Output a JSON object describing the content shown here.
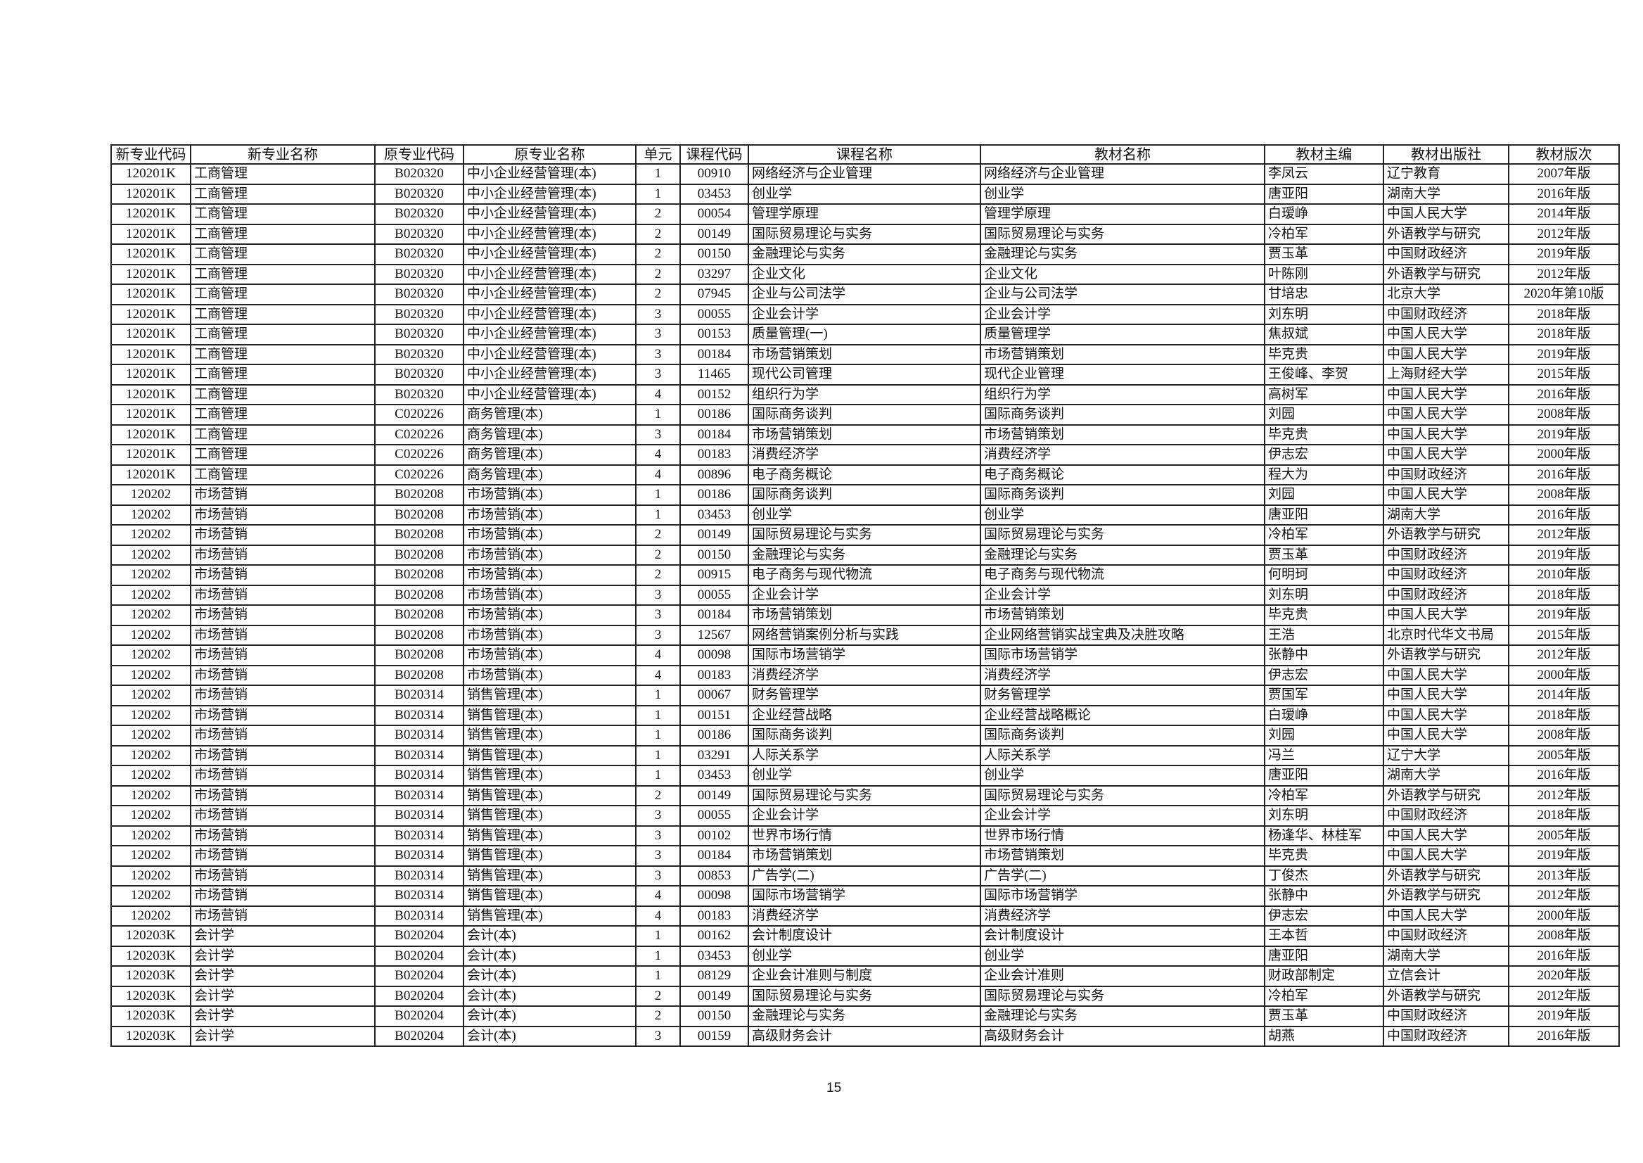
{
  "table": {
    "headers": [
      "新专业代码",
      "新专业名称",
      "原专业代码",
      "原专业名称",
      "单元",
      "课程代码",
      "课程名称",
      "教材名称",
      "教材主编",
      "教材出版社",
      "教材版次"
    ],
    "rows": [
      [
        "120201K",
        "工商管理",
        "B020320",
        "中小企业经营管理(本)",
        "1",
        "00910",
        "网络经济与企业管理",
        "网络经济与企业管理",
        "李凤云",
        "辽宁教育",
        "2007年版"
      ],
      [
        "120201K",
        "工商管理",
        "B020320",
        "中小企业经营管理(本)",
        "1",
        "03453",
        "创业学",
        "创业学",
        "唐亚阳",
        "湖南大学",
        "2016年版"
      ],
      [
        "120201K",
        "工商管理",
        "B020320",
        "中小企业经营管理(本)",
        "2",
        "00054",
        "管理学原理",
        "管理学原理",
        "白瑷峥",
        "中国人民大学",
        "2014年版"
      ],
      [
        "120201K",
        "工商管理",
        "B020320",
        "中小企业经营管理(本)",
        "2",
        "00149",
        "国际贸易理论与实务",
        "国际贸易理论与实务",
        "冷柏军",
        "外语教学与研究",
        "2012年版"
      ],
      [
        "120201K",
        "工商管理",
        "B020320",
        "中小企业经营管理(本)",
        "2",
        "00150",
        "金融理论与实务",
        "金融理论与实务",
        "贾玉革",
        "中国财政经济",
        "2019年版"
      ],
      [
        "120201K",
        "工商管理",
        "B020320",
        "中小企业经营管理(本)",
        "2",
        "03297",
        "企业文化",
        "企业文化",
        "叶陈刚",
        "外语教学与研究",
        "2012年版"
      ],
      [
        "120201K",
        "工商管理",
        "B020320",
        "中小企业经营管理(本)",
        "2",
        "07945",
        "企业与公司法学",
        "企业与公司法学",
        "甘培忠",
        "北京大学",
        "2020年第10版"
      ],
      [
        "120201K",
        "工商管理",
        "B020320",
        "中小企业经营管理(本)",
        "3",
        "00055",
        "企业会计学",
        "企业会计学",
        "刘东明",
        "中国财政经济",
        "2018年版"
      ],
      [
        "120201K",
        "工商管理",
        "B020320",
        "中小企业经营管理(本)",
        "3",
        "00153",
        "质量管理(一)",
        "质量管理学",
        "焦叔斌",
        "中国人民大学",
        "2018年版"
      ],
      [
        "120201K",
        "工商管理",
        "B020320",
        "中小企业经营管理(本)",
        "3",
        "00184",
        "市场营销策划",
        "市场营销策划",
        "毕克贵",
        "中国人民大学",
        "2019年版"
      ],
      [
        "120201K",
        "工商管理",
        "B020320",
        "中小企业经营管理(本)",
        "3",
        "11465",
        "现代公司管理",
        "现代企业管理",
        "王俊峰、李贺",
        "上海财经大学",
        "2015年版"
      ],
      [
        "120201K",
        "工商管理",
        "B020320",
        "中小企业经营管理(本)",
        "4",
        "00152",
        "组织行为学",
        "组织行为学",
        "高树军",
        "中国人民大学",
        "2016年版"
      ],
      [
        "120201K",
        "工商管理",
        "C020226",
        "商务管理(本)",
        "1",
        "00186",
        "国际商务谈判",
        "国际商务谈判",
        "刘园",
        "中国人民大学",
        "2008年版"
      ],
      [
        "120201K",
        "工商管理",
        "C020226",
        "商务管理(本)",
        "3",
        "00184",
        "市场营销策划",
        "市场营销策划",
        "毕克贵",
        "中国人民大学",
        "2019年版"
      ],
      [
        "120201K",
        "工商管理",
        "C020226",
        "商务管理(本)",
        "4",
        "00183",
        "消费经济学",
        "消费经济学",
        "伊志宏",
        "中国人民大学",
        "2000年版"
      ],
      [
        "120201K",
        "工商管理",
        "C020226",
        "商务管理(本)",
        "4",
        "00896",
        "电子商务概论",
        "电子商务概论",
        "程大为",
        "中国财政经济",
        "2016年版"
      ],
      [
        "120202",
        "市场营销",
        "B020208",
        "市场营销(本)",
        "1",
        "00186",
        "国际商务谈判",
        "国际商务谈判",
        "刘园",
        "中国人民大学",
        "2008年版"
      ],
      [
        "120202",
        "市场营销",
        "B020208",
        "市场营销(本)",
        "1",
        "03453",
        "创业学",
        "创业学",
        "唐亚阳",
        "湖南大学",
        "2016年版"
      ],
      [
        "120202",
        "市场营销",
        "B020208",
        "市场营销(本)",
        "2",
        "00149",
        "国际贸易理论与实务",
        "国际贸易理论与实务",
        "冷柏军",
        "外语教学与研究",
        "2012年版"
      ],
      [
        "120202",
        "市场营销",
        "B020208",
        "市场营销(本)",
        "2",
        "00150",
        "金融理论与实务",
        "金融理论与实务",
        "贾玉革",
        "中国财政经济",
        "2019年版"
      ],
      [
        "120202",
        "市场营销",
        "B020208",
        "市场营销(本)",
        "2",
        "00915",
        "电子商务与现代物流",
        "电子商务与现代物流",
        "何明珂",
        "中国财政经济",
        "2010年版"
      ],
      [
        "120202",
        "市场营销",
        "B020208",
        "市场营销(本)",
        "3",
        "00055",
        "企业会计学",
        "企业会计学",
        "刘东明",
        "中国财政经济",
        "2018年版"
      ],
      [
        "120202",
        "市场营销",
        "B020208",
        "市场营销(本)",
        "3",
        "00184",
        "市场营销策划",
        "市场营销策划",
        "毕克贵",
        "中国人民大学",
        "2019年版"
      ],
      [
        "120202",
        "市场营销",
        "B020208",
        "市场营销(本)",
        "3",
        "12567",
        "网络营销案例分析与实践",
        "企业网络营销实战宝典及决胜攻略",
        "王浩",
        "北京时代华文书局",
        "2015年版"
      ],
      [
        "120202",
        "市场营销",
        "B020208",
        "市场营销(本)",
        "4",
        "00098",
        "国际市场营销学",
        "国际市场营销学",
        "张静中",
        "外语教学与研究",
        "2012年版"
      ],
      [
        "120202",
        "市场营销",
        "B020208",
        "市场营销(本)",
        "4",
        "00183",
        "消费经济学",
        "消费经济学",
        "伊志宏",
        "中国人民大学",
        "2000年版"
      ],
      [
        "120202",
        "市场营销",
        "B020314",
        "销售管理(本)",
        "1",
        "00067",
        "财务管理学",
        "财务管理学",
        "贾国军",
        "中国人民大学",
        "2014年版"
      ],
      [
        "120202",
        "市场营销",
        "B020314",
        "销售管理(本)",
        "1",
        "00151",
        "企业经营战略",
        "企业经营战略概论",
        "白瑷峥",
        "中国人民大学",
        "2018年版"
      ],
      [
        "120202",
        "市场营销",
        "B020314",
        "销售管理(本)",
        "1",
        "00186",
        "国际商务谈判",
        "国际商务谈判",
        "刘园",
        "中国人民大学",
        "2008年版"
      ],
      [
        "120202",
        "市场营销",
        "B020314",
        "销售管理(本)",
        "1",
        "03291",
        "人际关系学",
        "人际关系学",
        "冯兰",
        "辽宁大学",
        "2005年版"
      ],
      [
        "120202",
        "市场营销",
        "B020314",
        "销售管理(本)",
        "1",
        "03453",
        "创业学",
        "创业学",
        "唐亚阳",
        "湖南大学",
        "2016年版"
      ],
      [
        "120202",
        "市场营销",
        "B020314",
        "销售管理(本)",
        "2",
        "00149",
        "国际贸易理论与实务",
        "国际贸易理论与实务",
        "冷柏军",
        "外语教学与研究",
        "2012年版"
      ],
      [
        "120202",
        "市场营销",
        "B020314",
        "销售管理(本)",
        "3",
        "00055",
        "企业会计学",
        "企业会计学",
        "刘东明",
        "中国财政经济",
        "2018年版"
      ],
      [
        "120202",
        "市场营销",
        "B020314",
        "销售管理(本)",
        "3",
        "00102",
        "世界市场行情",
        "世界市场行情",
        "杨逢华、林桂军",
        "中国人民大学",
        "2005年版"
      ],
      [
        "120202",
        "市场营销",
        "B020314",
        "销售管理(本)",
        "3",
        "00184",
        "市场营销策划",
        "市场营销策划",
        "毕克贵",
        "中国人民大学",
        "2019年版"
      ],
      [
        "120202",
        "市场营销",
        "B020314",
        "销售管理(本)",
        "3",
        "00853",
        "广告学(二)",
        "广告学(二)",
        "丁俊杰",
        "外语教学与研究",
        "2013年版"
      ],
      [
        "120202",
        "市场营销",
        "B020314",
        "销售管理(本)",
        "4",
        "00098",
        "国际市场营销学",
        "国际市场营销学",
        "张静中",
        "外语教学与研究",
        "2012年版"
      ],
      [
        "120202",
        "市场营销",
        "B020314",
        "销售管理(本)",
        "4",
        "00183",
        "消费经济学",
        "消费经济学",
        "伊志宏",
        "中国人民大学",
        "2000年版"
      ],
      [
        "120203K",
        "会计学",
        "B020204",
        "会计(本)",
        "1",
        "00162",
        "会计制度设计",
        "会计制度设计",
        "王本哲",
        "中国财政经济",
        "2008年版"
      ],
      [
        "120203K",
        "会计学",
        "B020204",
        "会计(本)",
        "1",
        "03453",
        "创业学",
        "创业学",
        "唐亚阳",
        "湖南大学",
        "2016年版"
      ],
      [
        "120203K",
        "会计学",
        "B020204",
        "会计(本)",
        "1",
        "08129",
        "企业会计准则与制度",
        "企业会计准则",
        "财政部制定",
        "立信会计",
        "2020年版"
      ],
      [
        "120203K",
        "会计学",
        "B020204",
        "会计(本)",
        "2",
        "00149",
        "国际贸易理论与实务",
        "国际贸易理论与实务",
        "冷柏军",
        "外语教学与研究",
        "2012年版"
      ],
      [
        "120203K",
        "会计学",
        "B020204",
        "会计(本)",
        "2",
        "00150",
        "金融理论与实务",
        "金融理论与实务",
        "贾玉革",
        "中国财政经济",
        "2019年版"
      ],
      [
        "120203K",
        "会计学",
        "B020204",
        "会计(本)",
        "3",
        "00159",
        "高级财务会计",
        "高级财务会计",
        "胡燕",
        "中国财政经济",
        "2016年版"
      ]
    ]
  },
  "page_number": "15"
}
